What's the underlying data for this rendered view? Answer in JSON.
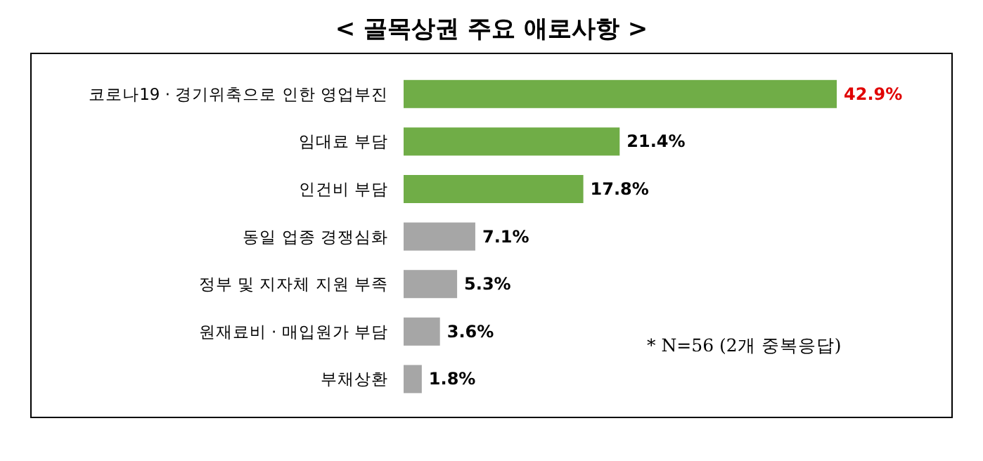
{
  "chart_data": {
    "type": "bar",
    "orientation": "horizontal",
    "title": "< 골목상권 주요 애로사항 >",
    "categories": [
      "코로나19 · 경기위축으로 인한 영업부진",
      "임대료 부담",
      "인건비 부담",
      "동일 업종 경쟁심화",
      "정부 및 지자체 지원 부족",
      "원재료비 · 매입원가 부담",
      "부채상환"
    ],
    "values": [
      42.9,
      21.4,
      17.8,
      7.1,
      5.3,
      3.6,
      1.8
    ],
    "value_labels": [
      "42.9%",
      "21.4%",
      "17.8%",
      "7.1%",
      "5.3%",
      "3.6%",
      "1.8%"
    ],
    "colors": [
      "#70ad47",
      "#70ad47",
      "#70ad47",
      "#a6a6a6",
      "#a6a6a6",
      "#a6a6a6",
      "#a6a6a6"
    ],
    "annotations": [
      "* N=56 (2개 중복응답)"
    ]
  }
}
